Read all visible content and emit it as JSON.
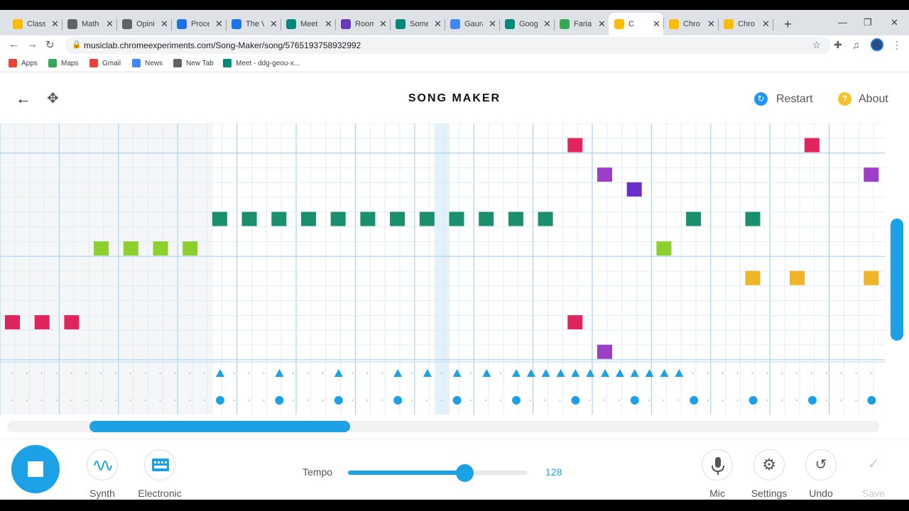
{
  "browser": {
    "tabs": [
      {
        "label": "Class",
        "color": "#fbbc04"
      },
      {
        "label": "Math",
        "color": "#5f6368"
      },
      {
        "label": "Opini",
        "color": "#5f6368"
      },
      {
        "label": "Proce",
        "color": "#1a73e8"
      },
      {
        "label": "The V",
        "color": "#1a73e8"
      },
      {
        "label": "Meet",
        "color": "#00897b"
      },
      {
        "label": "Room",
        "color": "#673ab7"
      },
      {
        "label": "Some",
        "color": "#00897b"
      },
      {
        "label": "Gaura",
        "color": "#4285f4"
      },
      {
        "label": "Goog",
        "color": "#00897b"
      },
      {
        "label": "Faria",
        "color": "#34a853"
      },
      {
        "label": "C",
        "color": "#fbbc04"
      },
      {
        "label": "Chro",
        "color": "#fbbc04"
      },
      {
        "label": "Chro",
        "color": "#fbbc04"
      }
    ],
    "url": "musiclab.chromeexperiments.com/Song-Maker/song/5765193758932992",
    "bookmarks": [
      {
        "label": "Apps",
        "color": "#ea4335"
      },
      {
        "label": "Maps",
        "color": "#34a853"
      },
      {
        "label": "Gmail",
        "color": "#ea4335"
      },
      {
        "label": "News",
        "color": "#4285f4"
      },
      {
        "label": "New Tab",
        "color": "#5f6368"
      },
      {
        "label": "Meet - ddg-geou-x...",
        "color": "#00897b"
      }
    ]
  },
  "header": {
    "title": "SONG MAKER",
    "restart_label": "Restart",
    "about_label": "About"
  },
  "grid": {
    "columns": 60,
    "rows_melody": 16,
    "note_colors": {
      "row1": "#e0245e",
      "row2": "#9c3fc6",
      "row3": "#6a2fc8",
      "row4": "#1a8f6e",
      "row5": "#8ccf2f",
      "row6": "#f0b429",
      "row7": "#e0245e",
      "row8": "#9c3fc6"
    },
    "melody_notes": [
      {
        "col": 19,
        "row": 0,
        "color": "#e0245e"
      },
      {
        "col": 27,
        "row": 0,
        "color": "#e0245e"
      },
      {
        "col": 20,
        "row": 2,
        "color": "#9c3fc6"
      },
      {
        "col": 29,
        "row": 2,
        "color": "#9c3fc6"
      },
      {
        "col": 21,
        "row": 3,
        "color": "#6a2fc8"
      },
      {
        "col": 7,
        "row": 5,
        "color": "#1a8f6e"
      },
      {
        "col": 8,
        "row": 5,
        "color": "#1a8f6e"
      },
      {
        "col": 9,
        "row": 5,
        "color": "#1a8f6e"
      },
      {
        "col": 10,
        "row": 5,
        "color": "#1a8f6e"
      },
      {
        "col": 11,
        "row": 5,
        "color": "#1a8f6e"
      },
      {
        "col": 12,
        "row": 5,
        "color": "#1a8f6e"
      },
      {
        "col": 13,
        "row": 5,
        "color": "#1a8f6e"
      },
      {
        "col": 14,
        "row": 5,
        "color": "#1a8f6e"
      },
      {
        "col": 15,
        "row": 5,
        "color": "#1a8f6e"
      },
      {
        "col": 16,
        "row": 5,
        "color": "#1a8f6e"
      },
      {
        "col": 17,
        "row": 5,
        "color": "#1a8f6e"
      },
      {
        "col": 18,
        "row": 5,
        "color": "#1a8f6e"
      },
      {
        "col": 23,
        "row": 5,
        "color": "#1a8f6e"
      },
      {
        "col": 25,
        "row": 5,
        "color": "#1a8f6e"
      },
      {
        "col": 3,
        "row": 7,
        "color": "#8ccf2f"
      },
      {
        "col": 4,
        "row": 7,
        "color": "#8ccf2f"
      },
      {
        "col": 5,
        "row": 7,
        "color": "#8ccf2f"
      },
      {
        "col": 6,
        "row": 7,
        "color": "#8ccf2f"
      },
      {
        "col": 22,
        "row": 7,
        "color": "#8ccf2f"
      },
      {
        "col": 25,
        "row": 9,
        "color": "#f0b429"
      },
      {
        "col": 26.5,
        "row": 9,
        "color": "#f0b429"
      },
      {
        "col": 29,
        "row": 9,
        "color": "#f0b429"
      },
      {
        "col": 0,
        "row": 12,
        "color": "#e0245e"
      },
      {
        "col": 1,
        "row": 12,
        "color": "#e0245e"
      },
      {
        "col": 2,
        "row": 12,
        "color": "#e0245e"
      },
      {
        "col": 19,
        "row": 12,
        "color": "#e0245e"
      },
      {
        "col": 20,
        "row": 14,
        "color": "#9c3fc6"
      }
    ],
    "triangles": [
      7,
      9,
      11,
      13,
      14,
      15,
      16,
      17,
      17.5,
      18,
      18.5,
      19,
      19.5,
      20,
      20.5,
      21,
      21.5,
      22,
      22.5
    ],
    "circles": [
      7,
      9,
      11,
      13,
      15,
      17,
      19,
      21,
      23,
      25,
      27,
      29
    ]
  },
  "bottom": {
    "instrument1_label": "Synth",
    "instrument2_label": "Electronic",
    "tempo_label": "Tempo",
    "tempo_value": "128",
    "tempo_fraction": 0.65,
    "mic_label": "Mic",
    "settings_label": "Settings",
    "undo_label": "Undo",
    "save_label": "Save"
  }
}
